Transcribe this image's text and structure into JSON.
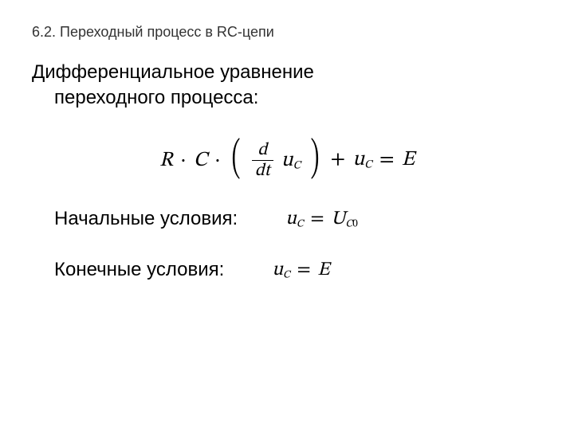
{
  "section_title": "6.2. Переходный процесс в RC-цепи",
  "heading_line1": "Дифференциальное уравнение",
  "heading_line2": "переходного процесса:",
  "main_equation": {
    "prefix_R": "R",
    "dot1": "·",
    "prefix_C": "C",
    "dot2": "·",
    "frac_num": "d",
    "frac_den": "dt",
    "uc_var": "u",
    "uc_sub": "C",
    "plus": "+",
    "uc2_var": "u",
    "uc2_sub": "C",
    "eq": "=",
    "rhs": "E"
  },
  "initial": {
    "label": "Начальные условия:",
    "lhs_var": "u",
    "lhs_sub": "C",
    "eq": "=",
    "rhs_var": "U",
    "rhs_sub1": "C",
    "rhs_sub2": "0"
  },
  "final": {
    "label": "Конечные условия:",
    "lhs_var": "u",
    "lhs_sub": "C",
    "eq": "=",
    "rhs": "E"
  },
  "colors": {
    "text": "#000000",
    "section_title": "#333333",
    "background": "#ffffff"
  },
  "fonts": {
    "body_family": "Arial",
    "math_family": "Cambria Math",
    "section_title_size_pt": 14,
    "body_size_pt": 18,
    "math_main_size_pt": 20,
    "math_side_size_pt": 18
  }
}
